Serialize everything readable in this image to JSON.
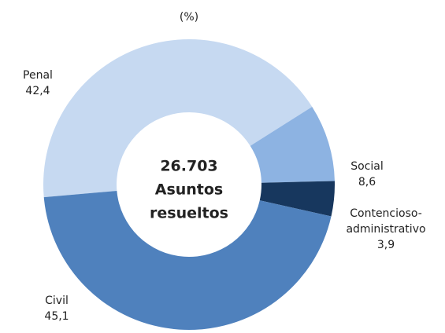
{
  "chart_data": {
    "type": "donut",
    "subtitle": "(%)",
    "categories": [
      "Penal",
      "Social",
      "Contencioso-administrativo",
      "Civil"
    ],
    "values": [
      42.4,
      8.6,
      3.9,
      45.1
    ],
    "value_labels": [
      "42,4",
      "8,6",
      "3,9",
      "45,1"
    ],
    "colors": [
      "#c6d9f1",
      "#8db3e2",
      "#17375e",
      "#4f81bd"
    ],
    "center_text": [
      "26.703",
      "Asuntos",
      "resueltos"
    ]
  }
}
